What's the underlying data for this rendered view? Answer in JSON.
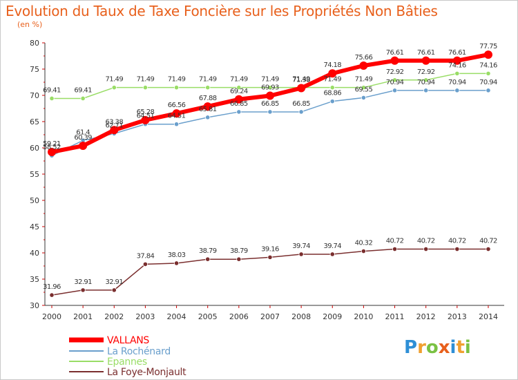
{
  "title": "Evolution du Taux de Taxe Foncière sur les Propriétés Non Bâties",
  "subtitle": "(en %)",
  "logo": {
    "text": "Proxiti"
  },
  "chart_data": {
    "type": "line",
    "title": "Evolution du Taux de Taxe Foncière sur les Propriétés Non Bâties",
    "ylabel": "(en %)",
    "xlabel": "",
    "x": [
      "2000",
      "2001",
      "2002",
      "2003",
      "2004",
      "2005",
      "2006",
      "2007",
      "2008",
      "2009",
      "2010",
      "2011",
      "2012",
      "2013",
      "2014"
    ],
    "ylim": [
      30,
      80
    ],
    "yticks": [
      "30",
      "35",
      "40",
      "45",
      "50",
      "55",
      "60",
      "65",
      "70",
      "75",
      "80"
    ],
    "grid": false,
    "legend_position": "bottom-left",
    "series": [
      {
        "name": "VALLANS",
        "color": "#ff0000",
        "values": [
          59.21,
          60.39,
          63.38,
          65.28,
          66.56,
          67.88,
          69.24,
          69.93,
          71.38,
          74.18,
          75.66,
          76.61,
          76.61,
          76.61,
          77.75
        ],
        "labels": [
          "59.21",
          "60.39",
          "63.38",
          "65.28",
          "66.56",
          "67.88",
          "69.24",
          "69.93",
          "71.38",
          "74.18",
          "75.66",
          "76.61",
          "76.61",
          "76.61",
          "77.75"
        ]
      },
      {
        "name": "La Rochénard",
        "color": "#6a9fcc",
        "values": [
          58.52,
          61.4,
          62.71,
          64.51,
          64.51,
          65.81,
          66.85,
          66.85,
          66.85,
          68.86,
          69.55,
          70.94,
          70.94,
          70.94,
          70.94
        ],
        "labels": [
          "58.52",
          "61.4",
          "62.71",
          "64.51",
          "64.51",
          "65.81",
          "66.85",
          "66.85",
          "66.85",
          "68.86",
          "69.55",
          "70.94",
          "70.94",
          "70.94",
          "70.94"
        ]
      },
      {
        "name": "Epannes",
        "color": "#99dd66",
        "values": [
          69.41,
          69.41,
          71.49,
          71.49,
          71.49,
          71.49,
          71.49,
          71.49,
          71.49,
          71.49,
          71.49,
          72.92,
          72.92,
          74.16,
          74.16
        ],
        "labels": [
          "69.41",
          "69.41",
          "71.49",
          "71.49",
          "71.49",
          "71.49",
          "71.49",
          "71.49",
          "71.49",
          "71.49",
          "71.49",
          "72.92",
          "72.92",
          "74.16",
          "74.16"
        ]
      },
      {
        "name": "La Foye-Monjault",
        "color": "#7a2e2e",
        "values": [
          31.96,
          32.91,
          32.91,
          37.84,
          38.03,
          38.79,
          38.79,
          39.16,
          39.74,
          39.74,
          40.32,
          40.72,
          40.72,
          40.72,
          40.72
        ],
        "labels": [
          "31.96",
          "32.91",
          "32.91",
          "37.84",
          "38.03",
          "38.79",
          "38.79",
          "39.16",
          "39.74",
          "39.74",
          "40.32",
          "40.72",
          "40.72",
          "40.72",
          "40.72"
        ]
      }
    ]
  }
}
